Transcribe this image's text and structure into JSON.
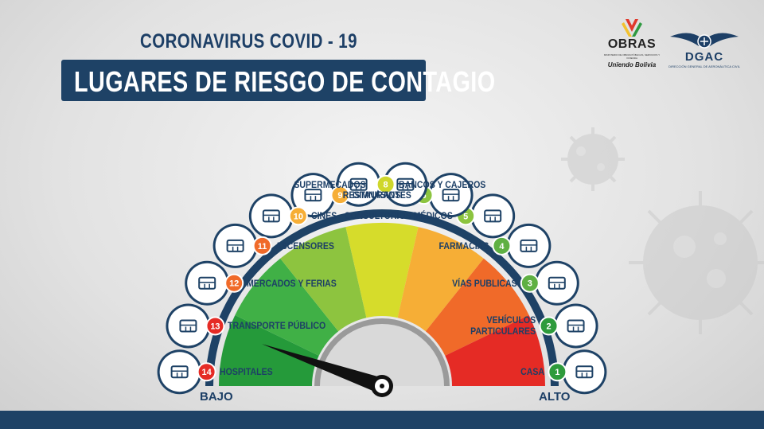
{
  "header": {
    "subtitle": "CORONAVIRUS COVID - 19",
    "title": "LUGARES DE RIESGO DE CONTAGIO"
  },
  "logos": {
    "obras": {
      "name": "OBRAS",
      "small_text": "MINISTERIO DE OBRAS PÚBLICAS, SERVICIOS Y VIVIENDA",
      "tagline": "Unïendo Bolivia"
    },
    "dgac": {
      "name": "DGAC",
      "small_text": "DIRECCIÓN GENERAL DE AERONÁUTICA CIVIL"
    }
  },
  "scale": {
    "low_label": "BAJO",
    "high_label": "ALTO",
    "segment_colors": [
      "#259a3a",
      "#40b046",
      "#8dc43f",
      "#d6dc2b",
      "#f6ae36",
      "#f06a29",
      "#e52b25"
    ],
    "needle_risk_level": 13,
    "needle_color": "#111111"
  },
  "places": [
    {
      "number": "1",
      "label": "CASA",
      "color": "#2e9b3c",
      "icon": "house-icon"
    },
    {
      "number": "2",
      "label": "VEHÍCULOS\nPARTICULARES",
      "color": "#2e9b3c",
      "icon": "car-icon"
    },
    {
      "number": "3",
      "label": "VÍAS PUBLICAS",
      "color": "#5fb043",
      "icon": "road-people-icon"
    },
    {
      "number": "4",
      "label": "FARMACIAS",
      "color": "#5fb043",
      "icon": "pharmacy-icon"
    },
    {
      "number": "5",
      "label": "CONSULTORIOS MÉDICOS",
      "color": "#8cc43f",
      "icon": "hospital-bed-icon"
    },
    {
      "number": "6",
      "label": "RESTAURANTES",
      "color": "#8cc43f",
      "icon": "chef-icon"
    },
    {
      "number": "7",
      "label": "SUPERMECADOS",
      "color": "#cfd72b",
      "icon": "shopping-cart-icon"
    },
    {
      "number": "8",
      "label": "BANCOS Y CAJEROS",
      "color": "#cfd72b",
      "icon": "atm-icon"
    },
    {
      "number": "9",
      "label": "GIMNASIOS",
      "color": "#f6ae36",
      "icon": "kettlebell-icon"
    },
    {
      "number": "10",
      "label": "CINES",
      "color": "#f6ae36",
      "icon": "cinema-icon"
    },
    {
      "number": "11",
      "label": "ASCENSORES",
      "color": "#f06a29",
      "icon": "elevator-icon"
    },
    {
      "number": "12",
      "label": "MERCADOS Y FERIAS",
      "color": "#f06a29",
      "icon": "market-stall-icon"
    },
    {
      "number": "13",
      "label": "TRANSPORTE PÚBLICO",
      "color": "#e52b25",
      "icon": "bus-icon"
    },
    {
      "number": "14",
      "label": "HOSPITALES",
      "color": "#e52b25",
      "icon": "hospital-icon"
    }
  ]
}
